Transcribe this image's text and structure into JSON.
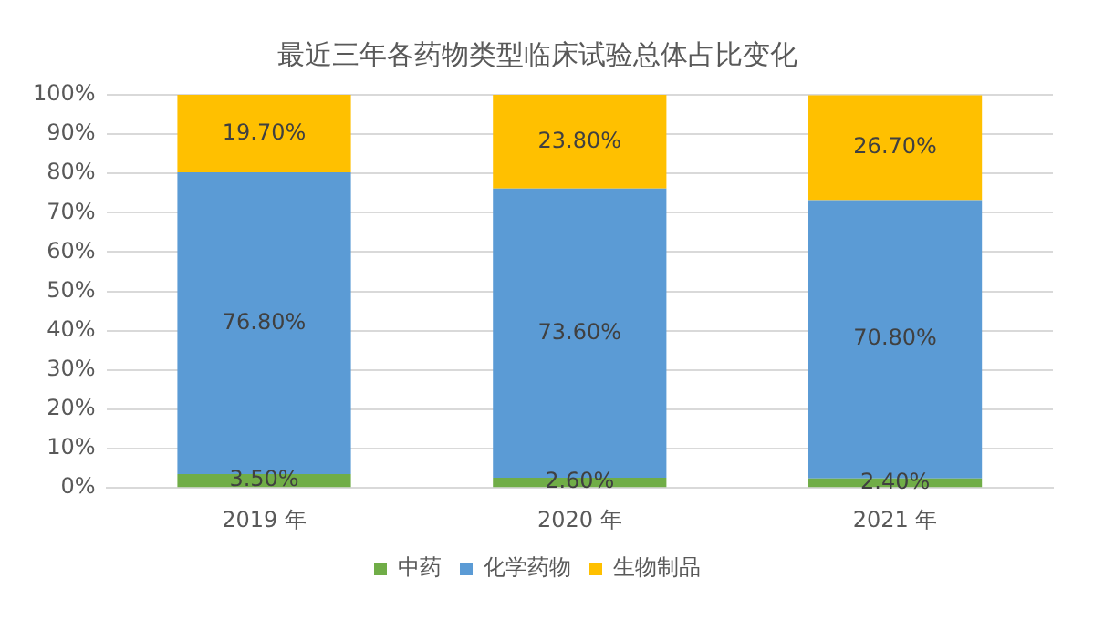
{
  "chart_data": {
    "type": "bar",
    "title": "最近三年各药物类型临床试验总体占比变化",
    "categories": [
      "2019 年",
      "2020 年",
      "2021 年"
    ],
    "stacked": true,
    "series": [
      {
        "name": "中药",
        "color": "#70ad47",
        "values": [
          3.5,
          2.6,
          2.4
        ],
        "value_labels": [
          "3.50%",
          "2.60%",
          "2.40%"
        ]
      },
      {
        "name": "化学药物",
        "color": "#5b9bd5",
        "values": [
          76.8,
          73.6,
          70.8
        ],
        "value_labels": [
          "76.80%",
          "73.60%",
          "70.80%"
        ]
      },
      {
        "name": "生物制品",
        "color": "#ffc000",
        "values": [
          19.7,
          23.8,
          26.7
        ],
        "value_labels": [
          "19.70%",
          "23.80%",
          "26.70%"
        ]
      }
    ],
    "ylim": [
      0,
      100
    ],
    "yticks": [
      {
        "value": 0,
        "label": "0%"
      },
      {
        "value": 10,
        "label": "10%"
      },
      {
        "value": 20,
        "label": "20%"
      },
      {
        "value": 30,
        "label": "30%"
      },
      {
        "value": 40,
        "label": "40%"
      },
      {
        "value": 50,
        "label": "50%"
      },
      {
        "value": 60,
        "label": "60%"
      },
      {
        "value": 70,
        "label": "70%"
      },
      {
        "value": 80,
        "label": "80%"
      },
      {
        "value": 90,
        "label": "90%"
      },
      {
        "value": 100,
        "label": "100%"
      }
    ],
    "grid": "y",
    "legend": "bottom"
  }
}
